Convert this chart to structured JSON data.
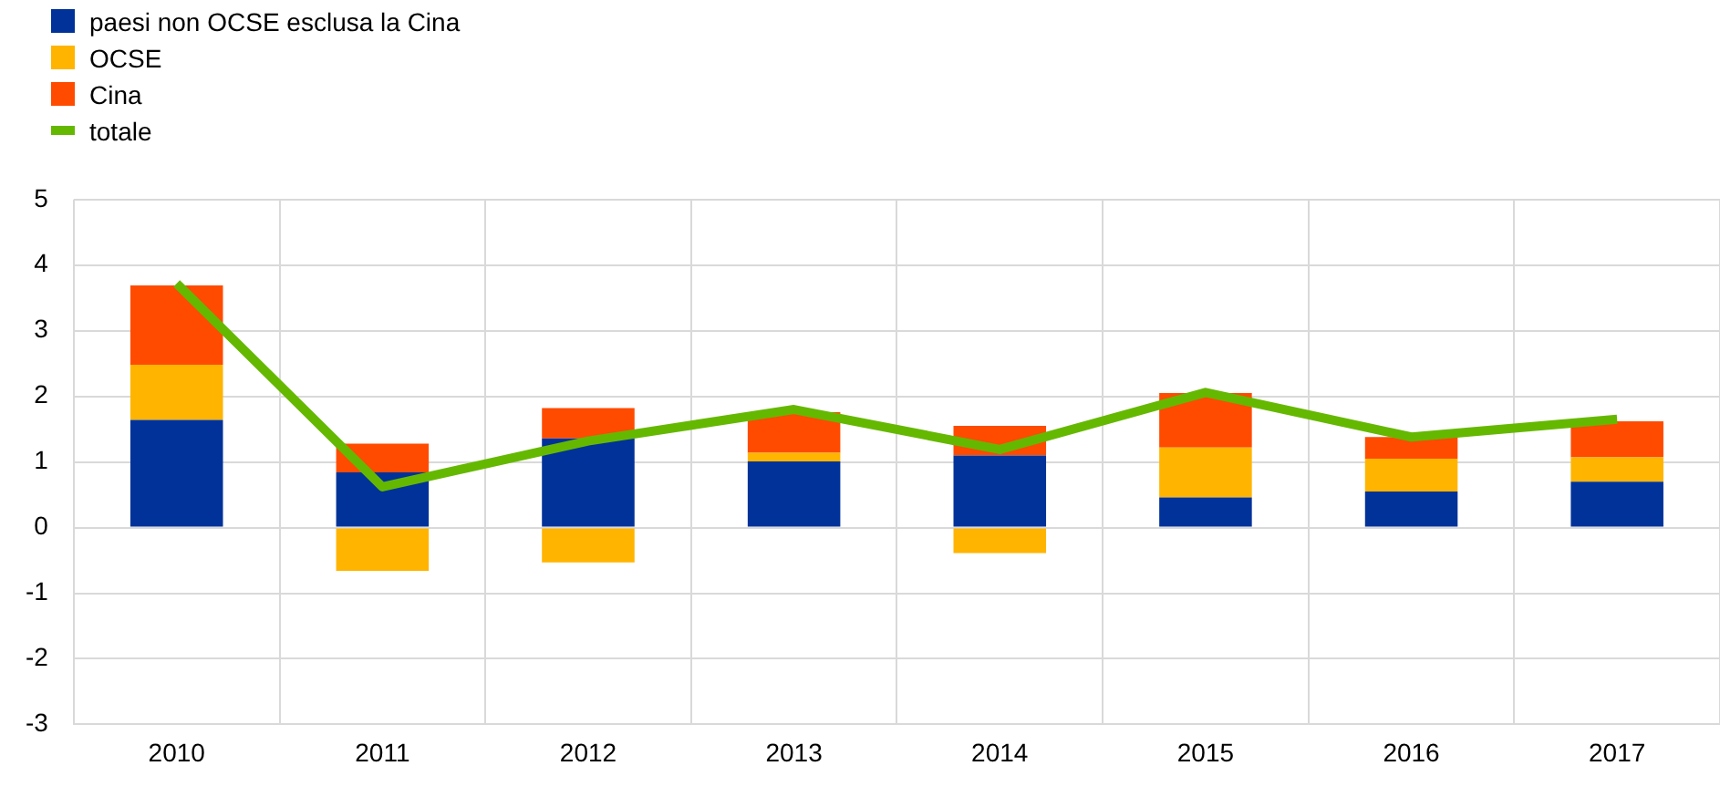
{
  "chart_data": {
    "type": "bar",
    "stacked": true,
    "categories": [
      "2010",
      "2011",
      "2012",
      "2013",
      "2014",
      "2015",
      "2016",
      "2017"
    ],
    "series": [
      {
        "name": "paesi non OCSE esclusa la Cina",
        "color": "#003299",
        "values": [
          1.64,
          0.84,
          1.36,
          1.01,
          1.1,
          0.46,
          0.55,
          0.7
        ]
      },
      {
        "name": "OCSE",
        "color": "#ffb400",
        "values": [
          0.84,
          -0.66,
          -0.53,
          0.13,
          -0.39,
          0.76,
          0.5,
          0.37
        ]
      },
      {
        "name": "Cina",
        "color": "#ff4b00",
        "values": [
          1.21,
          0.44,
          0.46,
          0.62,
          0.45,
          0.83,
          0.33,
          0.55
        ]
      },
      {
        "name": "totale",
        "type": "line",
        "color": "#65b800",
        "values": [
          3.72,
          0.62,
          1.32,
          1.8,
          1.19,
          2.06,
          1.38,
          1.65
        ]
      }
    ],
    "ylim": [
      -3,
      5
    ],
    "yticks": [
      -3,
      -2,
      -1,
      0,
      1,
      2,
      3,
      4,
      5
    ],
    "grid": true,
    "legend": "top left",
    "marker": "none"
  }
}
